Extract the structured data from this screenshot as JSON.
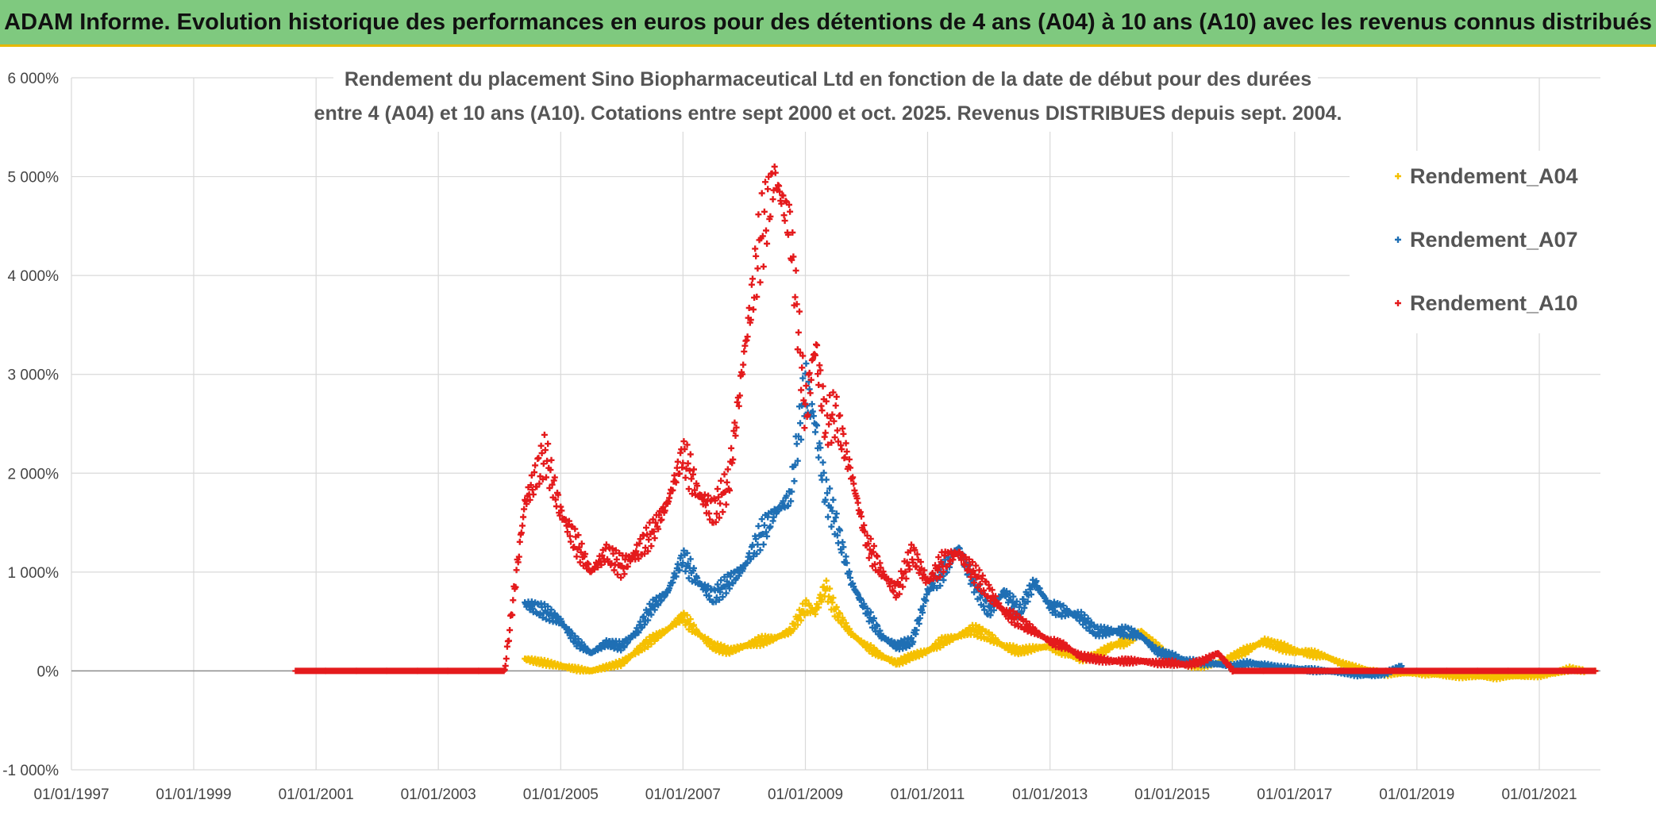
{
  "header": {
    "banner_title": "ADAM Informe. Evolution historique des performances en euros pour des détentions de 4 ans (A04) à 10 ans (A10) avec les revenus connus distribués"
  },
  "chart_data": {
    "type": "scatter",
    "title_line1": "Rendement du placement Sino Biopharmaceutical Ltd en fonction de la date de début pour des durées",
    "title_line2": "entre 4 (A04) et 10 ans (A10). Cotations entre sept 2000 et oct. 2025. Revenus DISTRIBUES depuis sept. 2004.",
    "xlabel": "",
    "ylabel": "",
    "x_range": [
      "1997-01-01",
      "2022-01-01"
    ],
    "x_ticks": [
      "01/01/1997",
      "01/01/1999",
      "01/01/2001",
      "01/01/2003",
      "01/01/2005",
      "01/01/2007",
      "01/01/2009",
      "01/01/2011",
      "01/01/2013",
      "01/01/2015",
      "01/01/2017",
      "01/01/2019",
      "01/01/2021"
    ],
    "y_range": [
      -1000,
      6000
    ],
    "y_ticks": [
      6000,
      5000,
      4000,
      3000,
      2000,
      1000,
      0,
      -1000
    ],
    "y_tick_labels": [
      "6 000%",
      "5 000%",
      "4 000%",
      "3 000%",
      "2 000%",
      "1 000%",
      "0%",
      "-1 000%"
    ],
    "y_unit": "%",
    "grid": true,
    "legend_position": "top-right",
    "marker": "+",
    "series": [
      {
        "name": "Rendement_A04",
        "color": "#f5c000",
        "points": [
          [
            "2004-06-01",
            120
          ],
          [
            "2004-10-01",
            80
          ],
          [
            "2005-01-01",
            50
          ],
          [
            "2005-04-01",
            20
          ],
          [
            "2005-07-01",
            0
          ],
          [
            "2005-10-01",
            40
          ],
          [
            "2006-01-01",
            80
          ],
          [
            "2006-04-01",
            200
          ],
          [
            "2006-07-01",
            320
          ],
          [
            "2006-10-01",
            420
          ],
          [
            "2007-01-01",
            550
          ],
          [
            "2007-04-01",
            380
          ],
          [
            "2007-07-01",
            250
          ],
          [
            "2007-10-01",
            200
          ],
          [
            "2008-01-01",
            250
          ],
          [
            "2008-04-01",
            300
          ],
          [
            "2008-07-01",
            330
          ],
          [
            "2008-10-01",
            400
          ],
          [
            "2009-01-01",
            650
          ],
          [
            "2009-03-01",
            600
          ],
          [
            "2009-05-01",
            850
          ],
          [
            "2009-07-01",
            600
          ],
          [
            "2009-10-01",
            380
          ],
          [
            "2010-01-01",
            250
          ],
          [
            "2010-04-01",
            150
          ],
          [
            "2010-07-01",
            80
          ],
          [
            "2010-10-01",
            150
          ],
          [
            "2011-01-01",
            200
          ],
          [
            "2011-04-01",
            300
          ],
          [
            "2011-07-01",
            350
          ],
          [
            "2011-10-01",
            420
          ],
          [
            "2012-01-01",
            350
          ],
          [
            "2012-04-01",
            250
          ],
          [
            "2012-07-01",
            200
          ],
          [
            "2012-10-01",
            230
          ],
          [
            "2013-01-01",
            250
          ],
          [
            "2013-04-01",
            180
          ],
          [
            "2013-07-01",
            120
          ],
          [
            "2013-10-01",
            150
          ],
          [
            "2014-01-01",
            250
          ],
          [
            "2014-04-01",
            300
          ],
          [
            "2014-07-01",
            400
          ],
          [
            "2014-10-01",
            250
          ],
          [
            "2015-01-01",
            100
          ],
          [
            "2015-04-01",
            60
          ],
          [
            "2015-07-01",
            50
          ],
          [
            "2015-10-01",
            80
          ],
          [
            "2016-01-01",
            150
          ],
          [
            "2016-04-01",
            220
          ],
          [
            "2016-07-01",
            300
          ],
          [
            "2016-10-01",
            250
          ],
          [
            "2017-01-01",
            200
          ],
          [
            "2017-04-01",
            180
          ],
          [
            "2017-07-01",
            150
          ],
          [
            "2017-10-01",
            80
          ],
          [
            "2018-01-01",
            30
          ],
          [
            "2018-04-01",
            0
          ],
          [
            "2018-07-01",
            -30
          ],
          [
            "2018-10-01",
            -20
          ],
          [
            "2019-01-01",
            -20
          ],
          [
            "2019-04-01",
            -30
          ],
          [
            "2019-07-01",
            -40
          ],
          [
            "2019-10-01",
            -50
          ],
          [
            "2020-01-01",
            -50
          ],
          [
            "2020-04-01",
            -60
          ],
          [
            "2020-07-01",
            -50
          ],
          [
            "2020-10-01",
            -50
          ],
          [
            "2021-01-01",
            -40
          ],
          [
            "2021-04-01",
            -20
          ],
          [
            "2021-07-01",
            20
          ],
          [
            "2021-10-01",
            0
          ],
          [
            "2021-12-01",
            0
          ]
        ]
      },
      {
        "name": "Rendement_A07",
        "color": "#1f6fb4",
        "points": [
          [
            "2004-06-01",
            680
          ],
          [
            "2004-10-01",
            600
          ],
          [
            "2005-01-01",
            500
          ],
          [
            "2005-04-01",
            300
          ],
          [
            "2005-07-01",
            180
          ],
          [
            "2005-10-01",
            280
          ],
          [
            "2006-01-01",
            250
          ],
          [
            "2006-04-01",
            400
          ],
          [
            "2006-07-01",
            650
          ],
          [
            "2006-10-01",
            800
          ],
          [
            "2007-01-01",
            1150
          ],
          [
            "2007-04-01",
            900
          ],
          [
            "2007-07-01",
            750
          ],
          [
            "2007-10-01",
            900
          ],
          [
            "2008-01-01",
            1050
          ],
          [
            "2008-04-01",
            1350
          ],
          [
            "2008-07-01",
            1600
          ],
          [
            "2008-10-01",
            1750
          ],
          [
            "2009-01-01",
            2900
          ],
          [
            "2009-03-01",
            2500
          ],
          [
            "2009-05-01",
            1800
          ],
          [
            "2009-07-01",
            1500
          ],
          [
            "2009-10-01",
            900
          ],
          [
            "2010-01-01",
            600
          ],
          [
            "2010-04-01",
            350
          ],
          [
            "2010-07-01",
            250
          ],
          [
            "2010-10-01",
            300
          ],
          [
            "2011-01-01",
            800
          ],
          [
            "2011-04-01",
            1000
          ],
          [
            "2011-07-01",
            1250
          ],
          [
            "2011-10-01",
            900
          ],
          [
            "2012-01-01",
            600
          ],
          [
            "2012-04-01",
            800
          ],
          [
            "2012-07-01",
            600
          ],
          [
            "2012-10-01",
            900
          ],
          [
            "2013-01-01",
            650
          ],
          [
            "2013-04-01",
            600
          ],
          [
            "2013-07-01",
            550
          ],
          [
            "2013-10-01",
            400
          ],
          [
            "2014-01-01",
            400
          ],
          [
            "2014-04-01",
            400
          ],
          [
            "2014-07-01",
            350
          ],
          [
            "2014-10-01",
            200
          ],
          [
            "2015-01-01",
            150
          ],
          [
            "2015-04-01",
            100
          ],
          [
            "2015-07-01",
            80
          ],
          [
            "2015-10-01",
            70
          ],
          [
            "2016-01-01",
            50
          ],
          [
            "2016-04-01",
            80
          ],
          [
            "2016-07-01",
            60
          ],
          [
            "2016-10-01",
            30
          ],
          [
            "2017-01-01",
            20
          ],
          [
            "2017-04-01",
            10
          ],
          [
            "2017-07-01",
            0
          ],
          [
            "2017-10-01",
            -10
          ],
          [
            "2018-01-01",
            -30
          ],
          [
            "2018-04-01",
            -40
          ],
          [
            "2018-07-01",
            -20
          ],
          [
            "2018-10-01",
            50
          ]
        ]
      },
      {
        "name": "Rendement_A10",
        "color": "#e41a1c",
        "points": [
          [
            "2000-09-01",
            0
          ],
          [
            "2001-03-01",
            0
          ],
          [
            "2001-09-01",
            0
          ],
          [
            "2002-03-01",
            0
          ],
          [
            "2002-09-01",
            0
          ],
          [
            "2003-03-01",
            0
          ],
          [
            "2003-09-01",
            0
          ],
          [
            "2004-02-01",
            0
          ],
          [
            "2004-06-01",
            1700
          ],
          [
            "2004-10-01",
            2200
          ],
          [
            "2005-01-01",
            1600
          ],
          [
            "2005-04-01",
            1300
          ],
          [
            "2005-07-01",
            1000
          ],
          [
            "2005-10-01",
            1200
          ],
          [
            "2006-01-01",
            1050
          ],
          [
            "2006-04-01",
            1200
          ],
          [
            "2006-07-01",
            1400
          ],
          [
            "2006-10-01",
            1700
          ],
          [
            "2007-01-01",
            2200
          ],
          [
            "2007-04-01",
            1800
          ],
          [
            "2007-07-01",
            1600
          ],
          [
            "2007-10-01",
            1900
          ],
          [
            "2008-01-01",
            3200
          ],
          [
            "2008-04-01",
            4300
          ],
          [
            "2008-07-01",
            5000
          ],
          [
            "2008-10-01",
            4500
          ],
          [
            "2009-01-01",
            2600
          ],
          [
            "2009-03-01",
            3300
          ],
          [
            "2009-05-01",
            2500
          ],
          [
            "2009-07-01",
            2600
          ],
          [
            "2009-10-01",
            2000
          ],
          [
            "2010-01-01",
            1300
          ],
          [
            "2010-04-01",
            1000
          ],
          [
            "2010-07-01",
            800
          ],
          [
            "2010-10-01",
            1200
          ],
          [
            "2011-01-01",
            900
          ],
          [
            "2011-04-01",
            1100
          ],
          [
            "2011-07-01",
            1200
          ],
          [
            "2011-10-01",
            1000
          ],
          [
            "2012-01-01",
            800
          ],
          [
            "2012-04-01",
            600
          ],
          [
            "2012-07-01",
            500
          ],
          [
            "2012-10-01",
            400
          ],
          [
            "2013-01-01",
            300
          ],
          [
            "2013-04-01",
            250
          ],
          [
            "2013-07-01",
            150
          ],
          [
            "2013-10-01",
            120
          ],
          [
            "2014-01-01",
            100
          ],
          [
            "2014-04-01",
            100
          ],
          [
            "2014-07-01",
            100
          ],
          [
            "2014-10-01",
            80
          ],
          [
            "2015-01-01",
            80
          ],
          [
            "2015-04-01",
            60
          ],
          [
            "2015-07-01",
            100
          ],
          [
            "2015-10-01",
            180
          ],
          [
            "2016-01-01",
            0
          ],
          [
            "2016-07-01",
            0
          ],
          [
            "2017-01-01",
            0
          ],
          [
            "2017-07-01",
            0
          ],
          [
            "2018-01-01",
            0
          ],
          [
            "2018-07-01",
            0
          ],
          [
            "2019-01-01",
            0
          ],
          [
            "2019-07-01",
            0
          ],
          [
            "2020-01-01",
            0
          ],
          [
            "2020-07-01",
            0
          ],
          [
            "2021-01-01",
            0
          ],
          [
            "2021-07-01",
            0
          ],
          [
            "2021-12-01",
            0
          ]
        ]
      }
    ]
  }
}
